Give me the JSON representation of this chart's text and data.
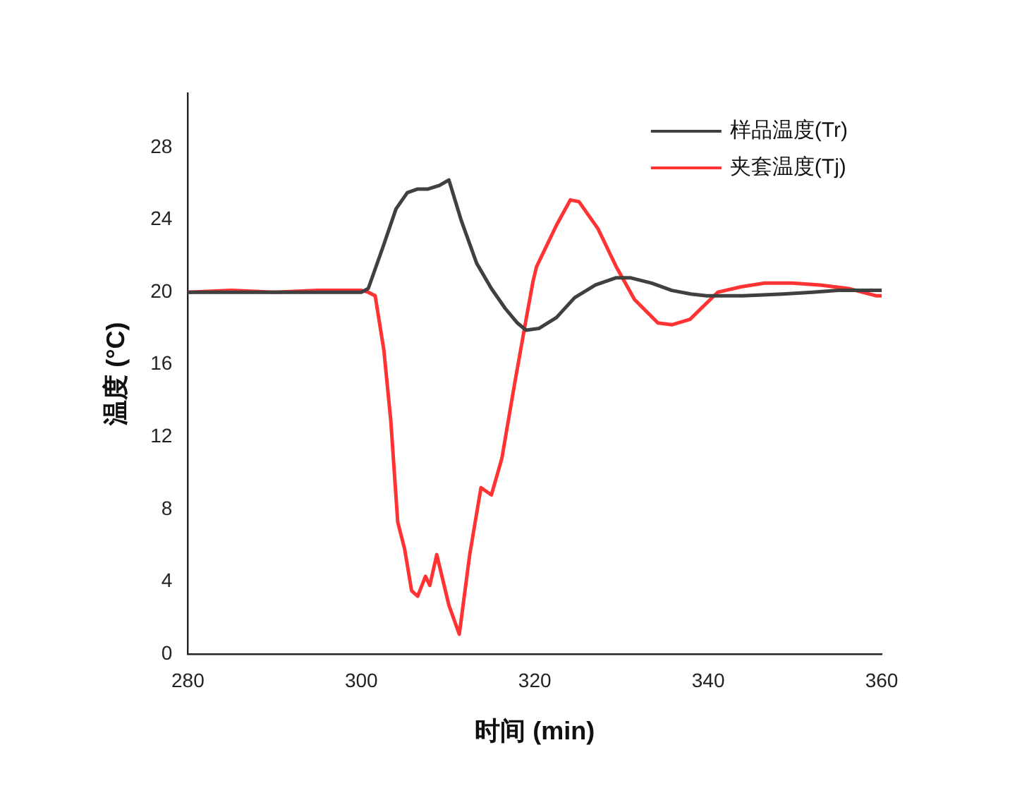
{
  "chart_data": {
    "type": "line",
    "xlabel": "时间 (min)",
    "ylabel": "温度 (°C)",
    "xlim": [
      280,
      360
    ],
    "xticks": [
      280,
      300,
      320,
      340,
      360
    ],
    "ylim": [
      0,
      31
    ],
    "yticks": [
      0,
      4,
      8,
      12,
      16,
      20,
      24,
      28
    ],
    "grid": false,
    "legend": "top right",
    "marker": "none",
    "line_style": "solid",
    "series": [
      {
        "name": "样品温度(Tr)",
        "color": "#404040",
        "x": [
          280,
          290,
          300,
          300.8,
          302.5,
          304,
          305.3,
          306.5,
          307.7,
          309,
          310.1,
          311.5,
          313.3,
          315,
          316.6,
          318,
          319,
          320.5,
          322.5,
          324.6,
          327,
          329.4,
          331,
          333.5,
          335.8,
          338,
          339.8,
          344,
          348.6,
          352,
          355,
          360
        ],
        "values": [
          20,
          20,
          20,
          20.2,
          22.5,
          24.6,
          25.5,
          25.7,
          25.7,
          25.9,
          26.2,
          24,
          21.6,
          20.2,
          19.1,
          18.3,
          17.9,
          18,
          18.6,
          19.7,
          20.4,
          20.8,
          20.8,
          20.5,
          20.1,
          19.9,
          19.8,
          19.8,
          19.9,
          20,
          20.1,
          20.1
        ]
      },
      {
        "name": "夹套温度(Tj)",
        "color": "#ff3333",
        "x": [
          280,
          285,
          290,
          295,
          300,
          300.8,
          301.6,
          302.6,
          303.4,
          304.2,
          305,
          305.8,
          306.5,
          307.4,
          307.9,
          308.7,
          310.1,
          311.3,
          312.5,
          313.8,
          315,
          316.2,
          317.7,
          319,
          319.8,
          320.2,
          322.5,
          324.1,
          325.1,
          327.3,
          329.4,
          331.5,
          334.2,
          335.8,
          337.9,
          341.1,
          343.8,
          346.5,
          349.7,
          352.9,
          356.2,
          359.4,
          360
        ],
        "values": [
          20,
          20.1,
          20,
          20.1,
          20.1,
          20,
          19.8,
          16.8,
          12.9,
          7.3,
          5.8,
          3.5,
          3.2,
          4.3,
          3.8,
          5.5,
          2.7,
          1.1,
          5.5,
          9.2,
          8.8,
          10.8,
          15,
          18.5,
          20.6,
          21.4,
          23.7,
          25.1,
          25,
          23.5,
          21.4,
          19.6,
          18.3,
          18.2,
          18.5,
          20,
          20.3,
          20.5,
          20.5,
          20.4,
          20.2,
          19.8,
          19.8
        ]
      }
    ]
  }
}
